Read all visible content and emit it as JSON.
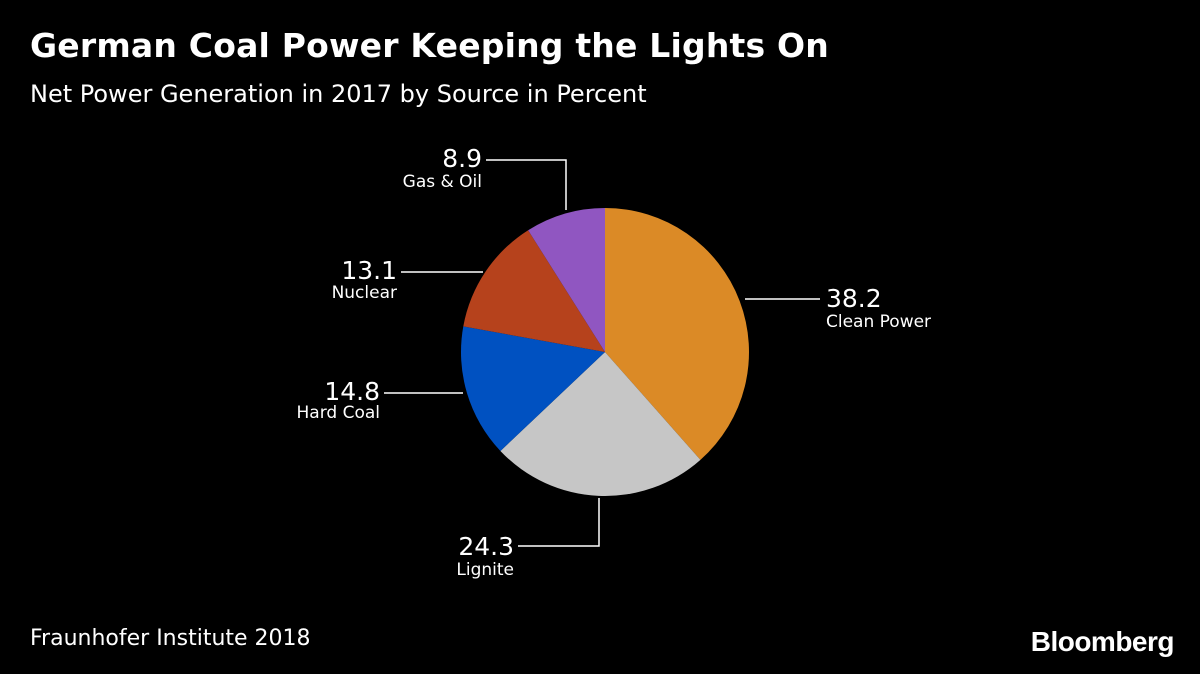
{
  "header": {
    "title": "German Coal Power Keeping the Lights On",
    "subtitle": "Net Power Generation in 2017 by Source in Percent"
  },
  "footer": {
    "source": "Fraunhofer Institute 2018",
    "brand": "Bloomberg"
  },
  "chart_data": {
    "type": "pie",
    "title": "German Coal Power Keeping the Lights On",
    "subtitle": "Net Power Generation in 2017 by Source in Percent",
    "start_angle": "12 o'clock",
    "direction": "clockwise",
    "slices": [
      {
        "label": "Clean Power",
        "value": 38.2,
        "display": "38.2",
        "color": "#DB8A26"
      },
      {
        "label": "Lignite",
        "value": 24.3,
        "display": "24.3",
        "color": "#C6C6C6"
      },
      {
        "label": "Hard Coal",
        "value": 14.8,
        "display": "14.8",
        "color": "#0051C1"
      },
      {
        "label": "Nuclear",
        "value": 13.1,
        "display": "13.1",
        "color": "#B6421C"
      },
      {
        "label": "Gas & Oil",
        "value": 8.9,
        "display": "8.9",
        "color": "#9056C1"
      }
    ]
  }
}
